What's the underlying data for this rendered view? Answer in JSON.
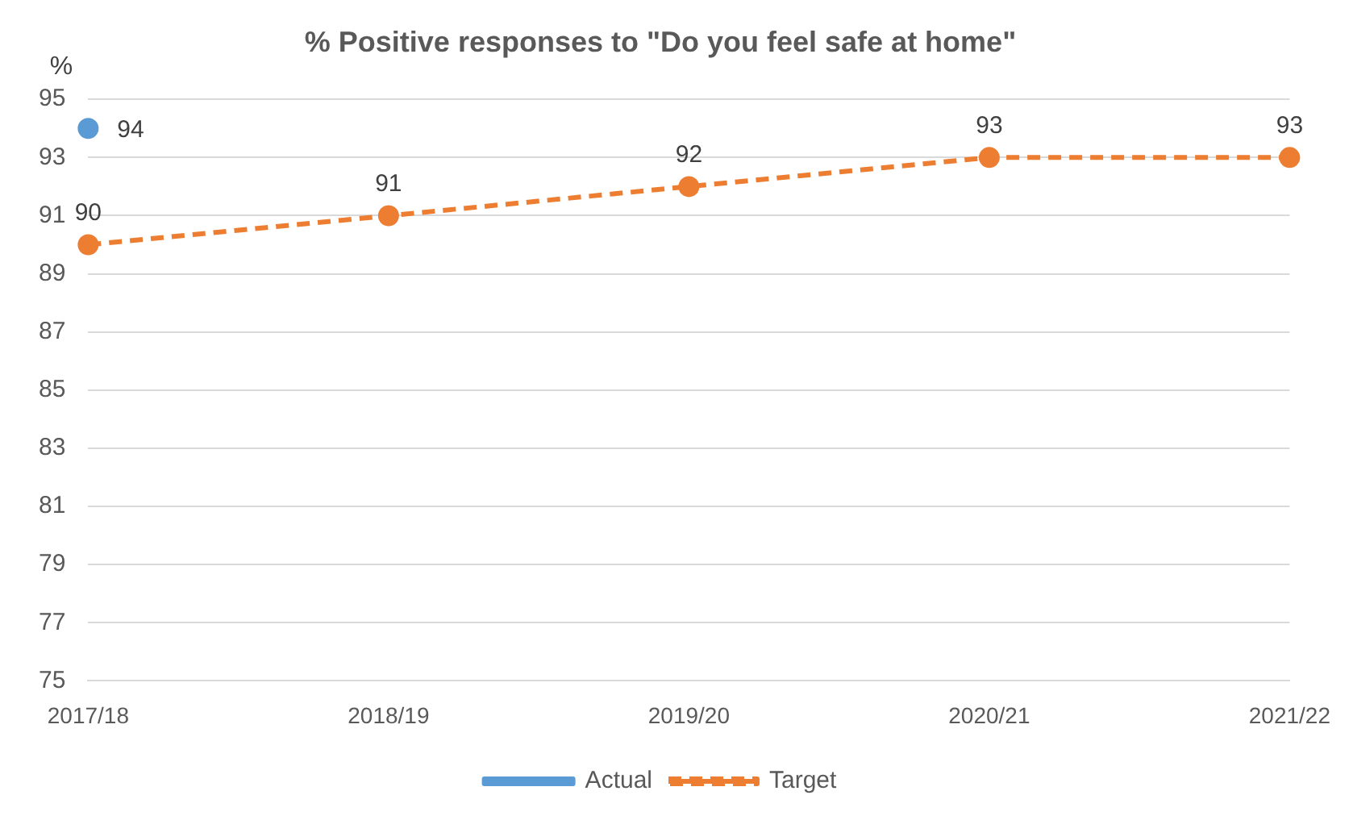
{
  "chart_data": {
    "type": "line",
    "title": "% Positive responses to \"Do you feel safe at home\"",
    "ylabel": "%",
    "categories": [
      "2017/18",
      "2018/19",
      "2019/20",
      "2020/21",
      "2021/22"
    ],
    "series": [
      {
        "name": "Actual",
        "color": "#5b9bd5",
        "values": [
          94,
          null,
          null,
          null,
          null
        ],
        "line_style": "solid"
      },
      {
        "name": "Target",
        "color": "#ed7d31",
        "values": [
          90,
          91,
          92,
          93,
          93
        ],
        "line_style": "dashed"
      }
    ],
    "ylim": [
      75,
      95
    ],
    "yticks": [
      75,
      77,
      79,
      81,
      83,
      85,
      87,
      89,
      91,
      93,
      95
    ],
    "grid": "y",
    "legend": "bottom",
    "marker": "circle",
    "data_labels": true
  }
}
